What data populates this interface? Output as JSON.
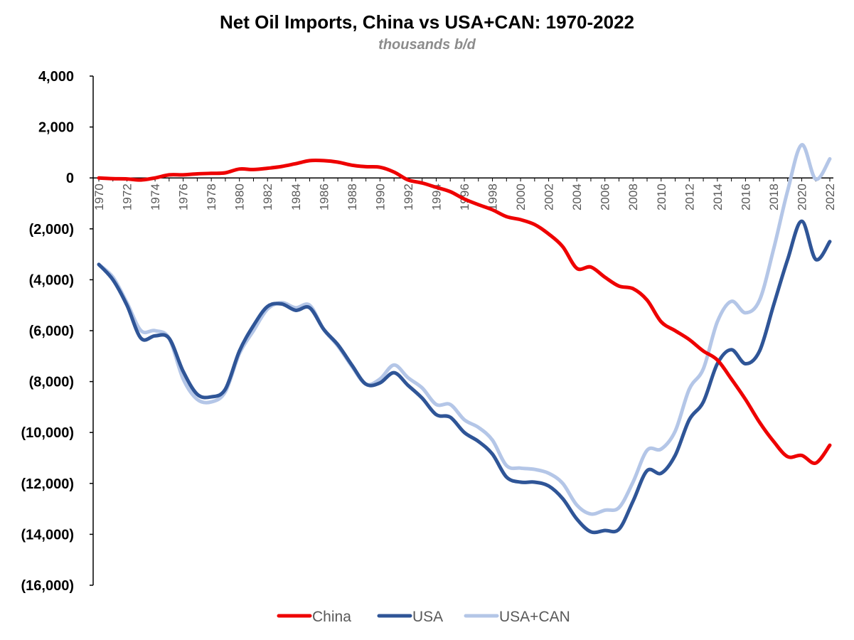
{
  "chart_data": {
    "type": "line",
    "title": "Net Oil Imports, China vs USA+CAN: 1970-2022",
    "subtitle": "thousands b/d",
    "ylim": [
      -16000,
      4000
    ],
    "y_ticks": [
      4000,
      2000,
      0,
      -2000,
      -4000,
      -6000,
      -8000,
      -10000,
      -12000,
      -14000,
      -16000
    ],
    "y_tick_labels": [
      "4,000",
      "2,000",
      "0",
      "(2,000)",
      "(4,000)",
      "(6,000)",
      "(8,000)",
      "(10,000)",
      "(12,000)",
      "(14,000)",
      "(16,000)"
    ],
    "x": [
      1970,
      1971,
      1972,
      1973,
      1974,
      1975,
      1976,
      1977,
      1978,
      1979,
      1980,
      1981,
      1982,
      1983,
      1984,
      1985,
      1986,
      1987,
      1988,
      1989,
      1990,
      1991,
      1992,
      1993,
      1994,
      1995,
      1996,
      1997,
      1998,
      1999,
      2000,
      2001,
      2002,
      2003,
      2004,
      2005,
      2006,
      2007,
      2008,
      2009,
      2010,
      2011,
      2012,
      2013,
      2014,
      2015,
      2016,
      2017,
      2018,
      2019,
      2020,
      2021,
      2022
    ],
    "x_tick_labels": [
      "1970",
      "1972",
      "1974",
      "1976",
      "1978",
      "1980",
      "1982",
      "1984",
      "1986",
      "1988",
      "1990",
      "1992",
      "1994",
      "1996",
      "1998",
      "2000",
      "2002",
      "2004",
      "2006",
      "2008",
      "2010",
      "2012",
      "2014",
      "2016",
      "2018",
      "2020",
      "2022"
    ],
    "grid": false,
    "legend_position": "bottom",
    "series": [
      {
        "name": "China",
        "color": "#ee0000",
        "values": [
          0,
          -30,
          -40,
          -80,
          0,
          120,
          120,
          160,
          180,
          200,
          350,
          330,
          380,
          450,
          560,
          680,
          680,
          620,
          500,
          440,
          420,
          230,
          -80,
          -200,
          -370,
          -540,
          -830,
          -1050,
          -1250,
          -1520,
          -1640,
          -1830,
          -2200,
          -2700,
          -3550,
          -3500,
          -3900,
          -4250,
          -4350,
          -4800,
          -5650,
          -6000,
          -6350,
          -6800,
          -7150,
          -7900,
          -8700,
          -9600,
          -10350,
          -10950,
          -10900,
          -11200,
          -10500
        ]
      },
      {
        "name": "USA",
        "color": "#2f5597",
        "values": [
          -3400,
          -4000,
          -5000,
          -6300,
          -6200,
          -6300,
          -7600,
          -8500,
          -8600,
          -8300,
          -6800,
          -5800,
          -5050,
          -4950,
          -5200,
          -5100,
          -5950,
          -6550,
          -7350,
          -8100,
          -8050,
          -7650,
          -8150,
          -8650,
          -9300,
          -9400,
          -10000,
          -10350,
          -10850,
          -11750,
          -11950,
          -11950,
          -12100,
          -12600,
          -13400,
          -13900,
          -13850,
          -13800,
          -12700,
          -11500,
          -11600,
          -10900,
          -9500,
          -8800,
          -7300,
          -6750,
          -7300,
          -6800,
          -5000,
          -3200,
          -1700,
          -3200,
          -2500
        ]
      },
      {
        "name": "USA+CAN",
        "color": "#b4c6e7",
        "values": [
          -3400,
          -3900,
          -4900,
          -6000,
          -6000,
          -6300,
          -7900,
          -8700,
          -8800,
          -8400,
          -6900,
          -6000,
          -5150,
          -4900,
          -5100,
          -5000,
          -5950,
          -6600,
          -7400,
          -8100,
          -7900,
          -7350,
          -7850,
          -8250,
          -8900,
          -8900,
          -9500,
          -9800,
          -10300,
          -11300,
          -11400,
          -11450,
          -11600,
          -12000,
          -12850,
          -13200,
          -13050,
          -12950,
          -11950,
          -10700,
          -10650,
          -9950,
          -8300,
          -7500,
          -5650,
          -4850,
          -5300,
          -4800,
          -2800,
          -500,
          1300,
          -50,
          750
        ]
      }
    ]
  }
}
